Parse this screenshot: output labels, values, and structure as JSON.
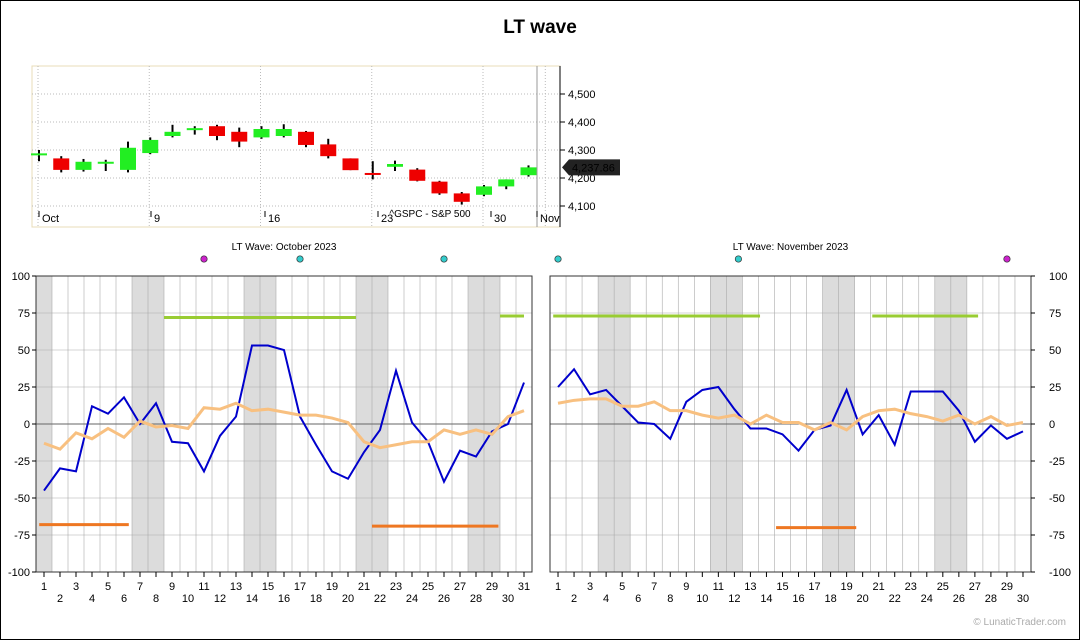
{
  "title": "LT wave",
  "credit": "© LunaticTrader.com",
  "chart_data": [
    {
      "type": "candlestick",
      "name": "price-chart",
      "x_labels": [
        "Oct",
        "9",
        "16",
        "23",
        "30",
        "Nov"
      ],
      "ylim": [
        4040,
        4600
      ],
      "y_ticks": [
        4100,
        4200,
        4300,
        4400,
        4500
      ],
      "y_tick_labels": [
        "4,100",
        "4,200",
        "4,300",
        "4,400",
        "4,500"
      ],
      "last_value_label": "4,237.86",
      "watermark": "^GSPC - S&P 500",
      "candles": [
        {
          "o": 4288,
          "h": 4300,
          "l": 4260,
          "c": 4288
        },
        {
          "o": 4270,
          "h": 4278,
          "l": 4220,
          "c": 4229
        },
        {
          "o": 4229,
          "h": 4268,
          "l": 4223,
          "c": 4258
        },
        {
          "o": 4258,
          "h": 4265,
          "l": 4225,
          "c": 4258
        },
        {
          "o": 4229,
          "h": 4330,
          "l": 4220,
          "c": 4308
        },
        {
          "o": 4289,
          "h": 4345,
          "l": 4285,
          "c": 4336
        },
        {
          "o": 4350,
          "h": 4390,
          "l": 4345,
          "c": 4365
        },
        {
          "o": 4375,
          "h": 4385,
          "l": 4355,
          "c": 4378
        },
        {
          "o": 4385,
          "h": 4390,
          "l": 4335,
          "c": 4350
        },
        {
          "o": 4365,
          "h": 4380,
          "l": 4310,
          "c": 4330
        },
        {
          "o": 4345,
          "h": 4385,
          "l": 4340,
          "c": 4375
        },
        {
          "o": 4350,
          "h": 4392,
          "l": 4345,
          "c": 4375
        },
        {
          "o": 4365,
          "h": 4368,
          "l": 4310,
          "c": 4318
        },
        {
          "o": 4320,
          "h": 4340,
          "l": 4270,
          "c": 4278
        },
        {
          "o": 4270,
          "h": 4270,
          "l": 4228,
          "c": 4228
        },
        {
          "o": 4218,
          "h": 4260,
          "l": 4195,
          "c": 4215
        },
        {
          "o": 4240,
          "h": 4262,
          "l": 4225,
          "c": 4250
        },
        {
          "o": 4230,
          "h": 4235,
          "l": 4188,
          "c": 4190
        },
        {
          "o": 4187,
          "h": 4190,
          "l": 4140,
          "c": 4145
        },
        {
          "o": 4145,
          "h": 4150,
          "l": 4105,
          "c": 4115
        },
        {
          "o": 4140,
          "h": 4175,
          "l": 4135,
          "c": 4170
        },
        {
          "o": 4170,
          "h": 4195,
          "l": 4160,
          "c": 4195
        },
        {
          "o": 4210,
          "h": 4245,
          "l": 4205,
          "c": 4238
        }
      ]
    },
    {
      "type": "line",
      "title": "LT Wave: October 2023",
      "x": [
        1,
        2,
        3,
        4,
        5,
        6,
        7,
        8,
        9,
        10,
        11,
        12,
        13,
        14,
        15,
        16,
        17,
        18,
        19,
        20,
        21,
        22,
        23,
        24,
        25,
        26,
        27,
        28,
        29,
        30,
        31
      ],
      "ylim": [
        -100,
        100
      ],
      "y_ticks": [
        -100,
        -75,
        -50,
        -25,
        0,
        25,
        50,
        75,
        100
      ],
      "shaded_days": [
        1,
        7,
        8,
        14,
        15,
        21,
        22,
        28,
        29
      ],
      "markers": [
        {
          "day": 11,
          "color": "#cc22cc"
        },
        {
          "day": 17,
          "color": "#33cccc"
        },
        {
          "day": 26,
          "color": "#33cccc"
        }
      ],
      "series": [
        {
          "color": "#0000cc",
          "values": [
            -45,
            -30,
            -32,
            12,
            7,
            18,
            0,
            14,
            -12,
            -13,
            -32,
            -8,
            5,
            53,
            53,
            50,
            5,
            -14,
            -32,
            -37,
            -19,
            -4,
            36,
            1,
            -12,
            -39,
            -18,
            -22,
            -5,
            0,
            28
          ]
        },
        {
          "color": "#f8c080",
          "values": [
            -13,
            -17,
            -6,
            -10,
            -3,
            -9,
            2,
            -2,
            -1,
            -3,
            11,
            10,
            14,
            9,
            10,
            8,
            6,
            6,
            4,
            1,
            -12,
            -16,
            -14,
            -12,
            -12,
            -4,
            -7,
            -4,
            -7,
            5,
            9
          ]
        }
      ],
      "hlines": [
        {
          "color": "#99cc33",
          "y": 72,
          "x1": 8.5,
          "x2": 20.5
        },
        {
          "color": "#99cc33",
          "y": 73,
          "x1": 29.5,
          "x2": 31
        },
        {
          "color": "#ee7722",
          "y": -68,
          "x1": 0.7,
          "x2": 6.3
        },
        {
          "color": "#ee7722",
          "y": -69,
          "x1": 21.5,
          "x2": 29.4
        }
      ]
    },
    {
      "type": "line",
      "title": "LT Wave: November 2023",
      "x": [
        1,
        2,
        3,
        4,
        5,
        6,
        7,
        8,
        9,
        10,
        11,
        12,
        13,
        14,
        15,
        16,
        17,
        18,
        19,
        20,
        21,
        22,
        23,
        24,
        25,
        26,
        27,
        28,
        29,
        30
      ],
      "ylim": [
        -100,
        100
      ],
      "y_ticks": [
        -100,
        -75,
        -50,
        -25,
        0,
        25,
        50,
        75,
        100
      ],
      "shaded_days": [
        4,
        5,
        11,
        12,
        18,
        19,
        25,
        26
      ],
      "markers": [
        {
          "day": 1,
          "color": "#33cccc"
        },
        {
          "day": 12.25,
          "color": "#33cccc"
        },
        {
          "day": 29,
          "color": "#cc22cc"
        }
      ],
      "series": [
        {
          "color": "#0000cc",
          "values": [
            25,
            37,
            20,
            23,
            12,
            1,
            0,
            -10,
            15,
            23,
            25,
            10,
            -3,
            -3,
            -7,
            -18,
            -4,
            -1,
            23,
            -7,
            6,
            -14,
            22,
            22,
            22,
            9,
            -12,
            -1,
            -10,
            -5
          ]
        },
        {
          "color": "#f8c080",
          "values": [
            14,
            16,
            17,
            17,
            12,
            12,
            15,
            9,
            9,
            6,
            4,
            6,
            0,
            6,
            1,
            1,
            -4,
            1,
            -4,
            5,
            9,
            10,
            7,
            5,
            2,
            6,
            0,
            5,
            -1,
            1
          ]
        }
      ],
      "hlines": [
        {
          "color": "#99cc33",
          "y": 73,
          "x1": 0.7,
          "x2": 13.6
        },
        {
          "color": "#99cc33",
          "y": 73,
          "x1": 20.6,
          "x2": 27.2
        },
        {
          "color": "#ee7722",
          "y": -70,
          "x1": 14.6,
          "x2": 19.6
        }
      ]
    }
  ]
}
